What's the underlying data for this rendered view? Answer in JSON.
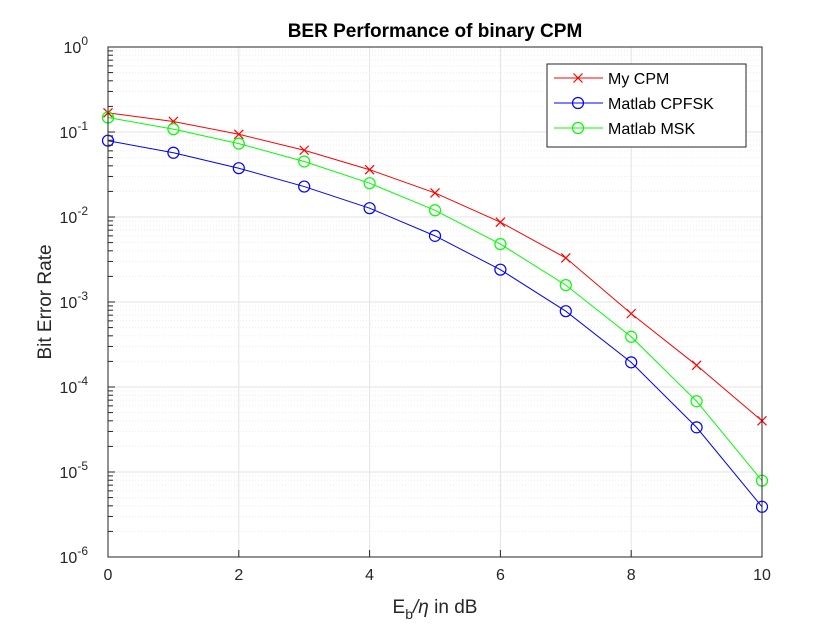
{
  "chart_data": {
    "type": "line",
    "title": "BER Performance of binary CPM",
    "xlabel": {
      "main": "E",
      "sub": "b",
      "symbol": "/η",
      "rest": " in dB"
    },
    "ylabel": "Bit Error Rate",
    "xlim": [
      0,
      10
    ],
    "ylim": [
      1e-06,
      1
    ],
    "yscale": "log",
    "grid": true,
    "minor_grid": true,
    "legend_position": "top-right",
    "x_ticks": [
      0,
      2,
      4,
      6,
      8,
      10
    ],
    "x_tick_labels": [
      "0",
      "2",
      "4",
      "6",
      "8",
      "10"
    ],
    "y_ticks": [
      {
        "value": 1,
        "base": "10",
        "exp": "0"
      },
      {
        "value": 0.1,
        "base": "10",
        "exp": "-1"
      },
      {
        "value": 0.01,
        "base": "10",
        "exp": "-2"
      },
      {
        "value": 0.001,
        "base": "10",
        "exp": "-3"
      },
      {
        "value": 0.0001,
        "base": "10",
        "exp": "-4"
      },
      {
        "value": 1e-05,
        "base": "10",
        "exp": "-5"
      },
      {
        "value": 1e-06,
        "base": "10",
        "exp": "-6"
      }
    ],
    "x": [
      0,
      1,
      2,
      3,
      4,
      5,
      6,
      7,
      8,
      9,
      10
    ],
    "series": [
      {
        "name": "My CPM",
        "color": "#ff0000",
        "marker": "x",
        "values": [
          0.168,
          0.133,
          0.094,
          0.061,
          0.036,
          0.0192,
          0.0087,
          0.0033,
          0.00073,
          0.00018,
          4e-05
        ]
      },
      {
        "name": "Matlab CPFSK",
        "color": "#0000ff",
        "marker": "o",
        "values": [
          0.079,
          0.057,
          0.0375,
          0.0228,
          0.0127,
          0.006,
          0.0024,
          0.00078,
          0.000195,
          3.35e-05,
          3.9e-06
        ]
      },
      {
        "name": "Matlab MSK",
        "color": "#00ff00",
        "marker": "o",
        "values": [
          0.148,
          0.108,
          0.073,
          0.045,
          0.025,
          0.012,
          0.0048,
          0.00158,
          0.00039,
          6.8e-05,
          7.9e-06
        ]
      }
    ]
  }
}
